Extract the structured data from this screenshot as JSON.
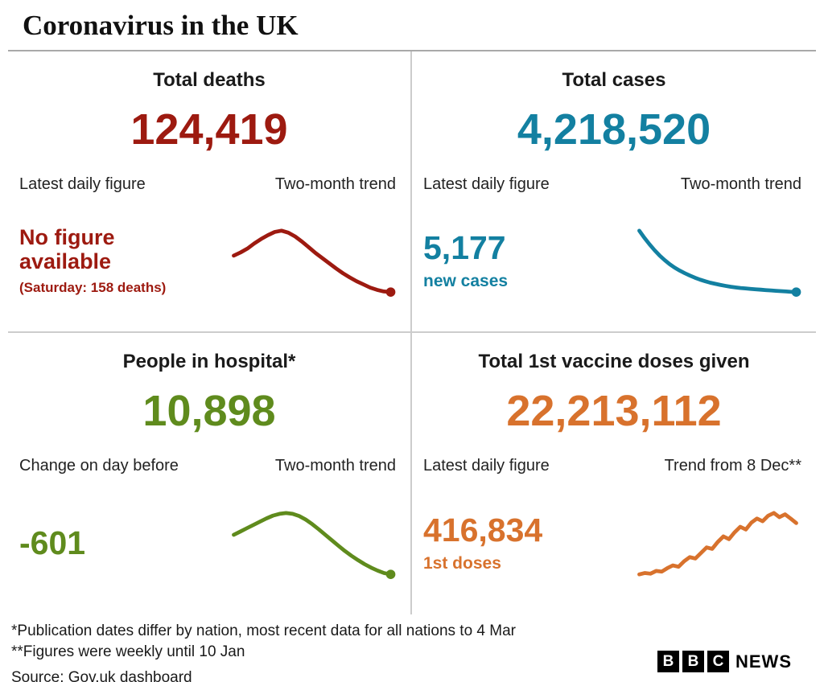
{
  "header": {
    "title": "Coronavirus in the UK"
  },
  "panels": [
    {
      "id": "total-deaths",
      "title": "Total deaths",
      "value": "124,419",
      "color": "#9d1a10",
      "left_label": "Latest daily figure",
      "right_label": "Two-month trend",
      "latest_line1": "No figure",
      "latest_line2": "available",
      "latest_note": "(Saturday: 158 deaths)"
    },
    {
      "id": "total-cases",
      "title": "Total cases",
      "value": "4,218,520",
      "color": "#1380a1",
      "left_label": "Latest daily figure",
      "right_label": "Two-month trend",
      "latest_value": "5,177",
      "latest_sub": "new cases"
    },
    {
      "id": "people-in-hospital",
      "title": "People in hospital*",
      "value": "10,898",
      "color": "#5f8b1d",
      "left_label": "Change on day before",
      "right_label": "Two-month trend",
      "latest_value": "-601",
      "latest_sub": ""
    },
    {
      "id": "vaccine-doses",
      "title": "Total 1st vaccine doses given",
      "value": "22,213,112",
      "color": "#d8722d",
      "left_label": "Latest daily figure",
      "right_label": "Trend from 8 Dec**",
      "latest_value": "416,834",
      "latest_sub": "1st doses"
    }
  ],
  "footer": {
    "note1": "*Publication dates differ by nation, most recent data for all nations to 4 Mar",
    "note2": "**Figures were weekly until 10 Jan",
    "source": "Source: Gov.uk dashboard"
  },
  "logo": {
    "letters": [
      "B",
      "B",
      "C"
    ],
    "news": "NEWS"
  },
  "chart_data": [
    {
      "type": "line",
      "name": "deaths-two-month-trend",
      "title": "Two-month trend (daily deaths, unlabeled sparkline, values estimated)",
      "color": "#9d1a10",
      "end_dot": true,
      "values": [
        820,
        870,
        930,
        1010,
        1080,
        1140,
        1190,
        1210,
        1180,
        1120,
        1040,
        950,
        860,
        780,
        700,
        620,
        545,
        480,
        420,
        370,
        320,
        285,
        260,
        250
      ]
    },
    {
      "type": "line",
      "name": "cases-two-month-trend",
      "title": "Two-month trend (daily cases, unlabeled sparkline, values estimated)",
      "color": "#1380a1",
      "end_dot": true,
      "values": [
        58000,
        52000,
        46500,
        41500,
        37000,
        33000,
        29500,
        26500,
        24000,
        21800,
        19800,
        18000,
        16400,
        15000,
        13800,
        12800,
        11900,
        11100,
        10400,
        9800,
        9300,
        8900,
        8500,
        8100,
        7800,
        7500,
        7200,
        6900,
        6600,
        6300,
        6000,
        5800
      ]
    },
    {
      "type": "line",
      "name": "hospital-two-month-trend",
      "title": "Two-month trend (people in hospital, unlabeled sparkline, values estimated)",
      "color": "#5f8b1d",
      "end_dot": true,
      "values": [
        29000,
        30500,
        32000,
        33500,
        35000,
        36500,
        37800,
        38600,
        39000,
        38600,
        37600,
        36000,
        33900,
        31500,
        29000,
        26500,
        24000,
        21600,
        19400,
        17400,
        15600,
        14000,
        12600,
        11500,
        10898
      ]
    },
    {
      "type": "line",
      "name": "vaccine-trend-from-8-dec",
      "title": "Trend from 8 Dec (1st doses, unlabeled sparkline, values estimated)",
      "color": "#d8722d",
      "end_dot": false,
      "values": [
        45000,
        55000,
        50000,
        70000,
        65000,
        90000,
        110000,
        100000,
        140000,
        170000,
        160000,
        200000,
        240000,
        230000,
        280000,
        320000,
        300000,
        350000,
        390000,
        370000,
        420000,
        450000,
        430000,
        470000,
        490000,
        460000,
        480000,
        450000,
        416834
      ]
    }
  ]
}
